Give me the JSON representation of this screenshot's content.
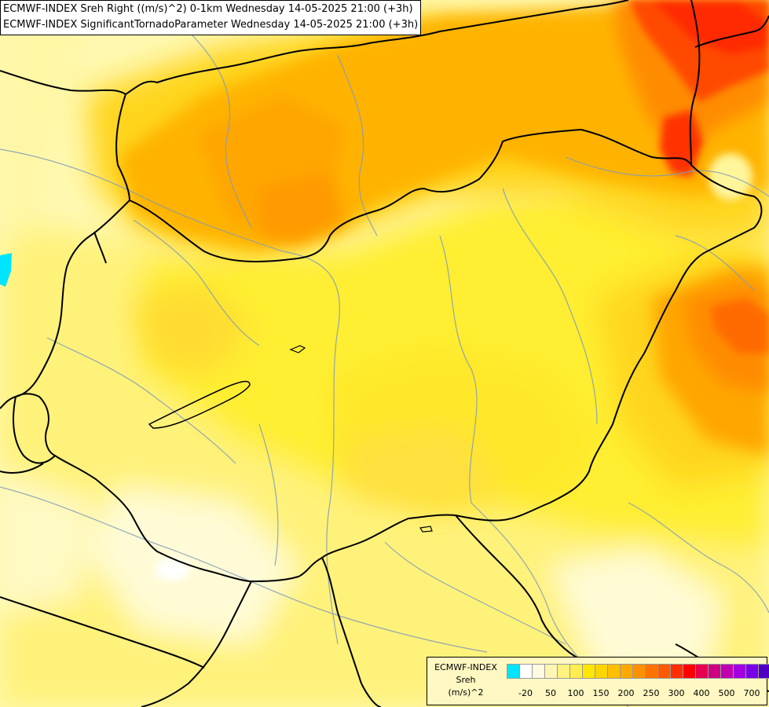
{
  "title": {
    "line1": "ECMWF-INDEX Sreh Right ((m/s)^2) 0-1km Wednesday 14-05-2025 21:00 (+3h)",
    "line2": "ECMWF-INDEX SignificantTornadoParameter Wednesday 14-05-2025 21:00 (+3h)"
  },
  "legend": {
    "label_line1": "ECMWF-INDEX",
    "label_line2": "Sreh",
    "label_line3": "(m/s)^2",
    "swatch_colors": [
      "#00e5ff",
      "#ffffff",
      "#fffbe0",
      "#fff6b3",
      "#fff27f",
      "#ffee4d",
      "#ffe600",
      "#ffd500",
      "#ffbf00",
      "#ffa800",
      "#ff9000",
      "#ff7400",
      "#ff5a00",
      "#ff2e00",
      "#ff0000",
      "#e6004d",
      "#cc0080",
      "#c000b0",
      "#a000e0",
      "#7a00e6",
      "#5000c0",
      "#2b0090",
      "#0a0070"
    ],
    "ticks": [
      "-20",
      "50",
      "100",
      "150",
      "200",
      "250",
      "300",
      "400",
      "500",
      "700"
    ]
  },
  "colors": {
    "field_low": "#fffac8",
    "field_yellow": "#ffee33",
    "field_gold": "#ffd21a",
    "field_orange": "#ffa500",
    "field_deep_orange": "#ff7a00",
    "field_red": "#ff2a00",
    "negative_cyan": "#00e5ff",
    "border_color": "#000000",
    "river_color": "#7f9bb8"
  }
}
